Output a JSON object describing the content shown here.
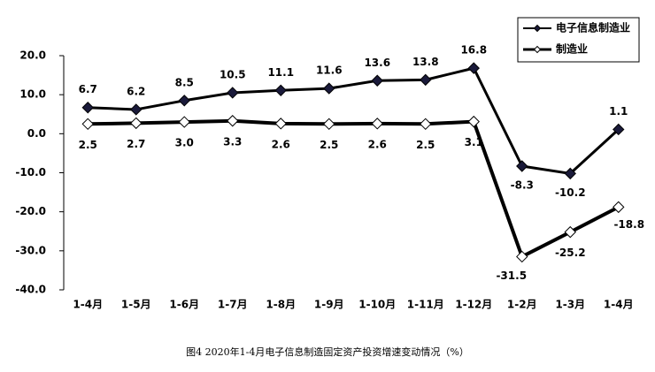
{
  "chart_data": {
    "type": "line",
    "categories": [
      "1-4月",
      "1-5月",
      "1-6月",
      "1-7月",
      "1-8月",
      "1-9月",
      "1-10月",
      "1-11月",
      "1-12月",
      "1-2月",
      "1-3月",
      "1-4月"
    ],
    "series": [
      {
        "name": "电子信息制造业",
        "color": "#000000",
        "marker": "filled-diamond",
        "values": [
          6.7,
          6.2,
          8.5,
          10.5,
          11.1,
          11.6,
          13.6,
          13.8,
          16.8,
          -8.3,
          -10.2,
          1.1
        ],
        "value_labels": [
          "6.7",
          "6.2",
          "8.5",
          "10.5",
          "11.1",
          "11.6",
          "13.6",
          "13.8",
          "16.8",
          "-8.3",
          "-10.2",
          "1.1"
        ]
      },
      {
        "name": "制造业",
        "color": "#000000",
        "marker": "open-diamond",
        "values": [
          2.5,
          2.7,
          3.0,
          3.3,
          2.6,
          2.5,
          2.6,
          2.5,
          3.1,
          -31.5,
          -25.2,
          -18.8
        ],
        "value_labels": [
          "2.5",
          "2.7",
          "3.0",
          "3.3",
          "2.6",
          "2.5",
          "2.6",
          "2.5",
          "3.1",
          "-31.5",
          "-25.2",
          "-18.8"
        ]
      }
    ],
    "ylim": [
      -40,
      20
    ],
    "yticks": [
      {
        "value": 20,
        "label": "20.0"
      },
      {
        "value": 10,
        "label": "10.0"
      },
      {
        "value": 0,
        "label": "0.0"
      },
      {
        "value": -10,
        "label": "-10.0"
      },
      {
        "value": -20,
        "label": "-20.0"
      },
      {
        "value": -30,
        "label": "-30.0"
      },
      {
        "value": -40,
        "label": "-40.0"
      }
    ],
    "caption": "图4   2020年1-4月电子信息制造固定资产投资增速变动情况（%）",
    "legend": "top-right"
  }
}
